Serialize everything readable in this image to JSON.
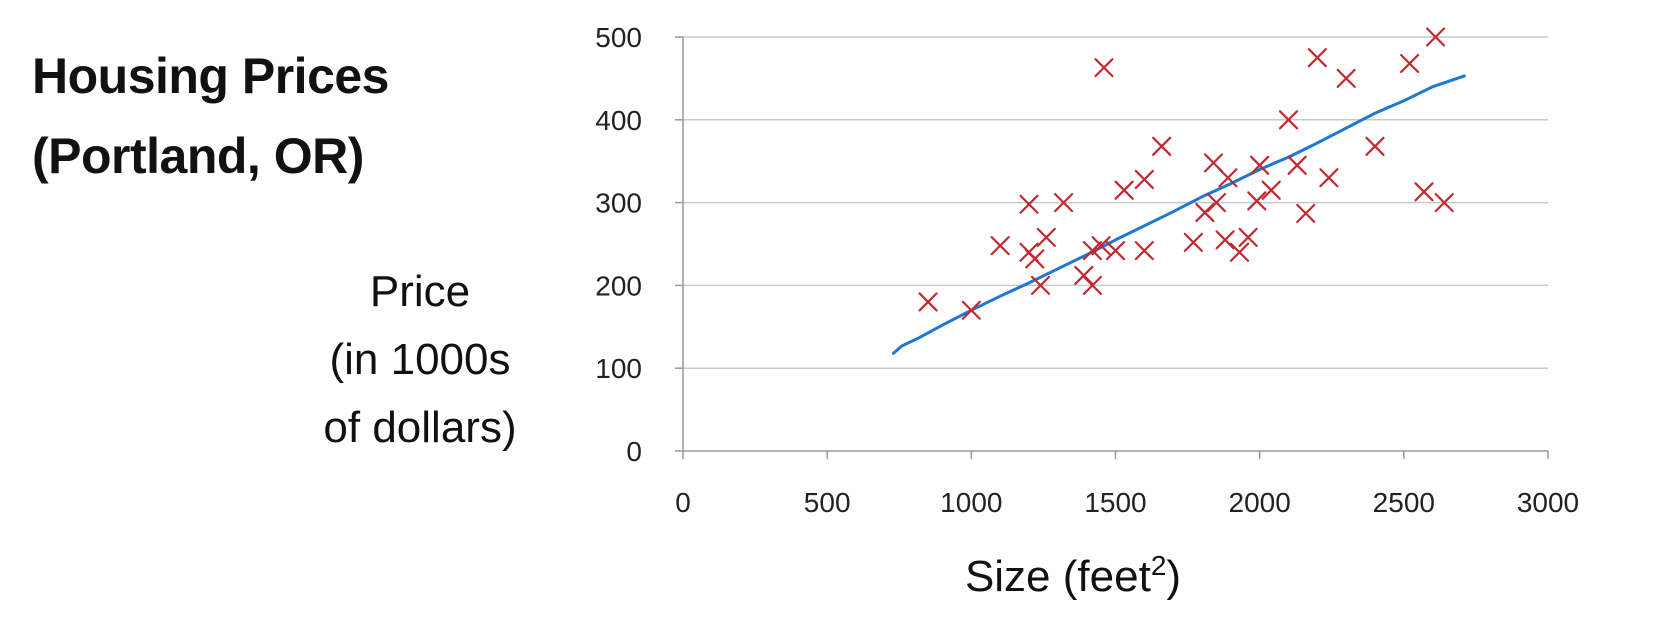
{
  "chart_data": {
    "type": "scatter",
    "title": [
      "Housing Prices",
      "(Portland, OR)"
    ],
    "ylabel": [
      "Price",
      "(in 1000s",
      "of dollars)"
    ],
    "xlabel": "Size (feet",
    "xlabel_superscript": "2",
    "xlabel_suffix": ")",
    "xlim": [
      0,
      3000
    ],
    "ylim": [
      0,
      500
    ],
    "xticks": [
      0,
      500,
      1000,
      1500,
      2000,
      2500,
      3000
    ],
    "yticks": [
      0,
      100,
      200,
      300,
      400,
      500
    ],
    "grid": "horizontal",
    "marker_color": "#c0292f",
    "fit_color": "#1e78d2",
    "series": [
      {
        "marker": "x",
        "points": [
          {
            "x": 850,
            "y": 180
          },
          {
            "x": 1000,
            "y": 170
          },
          {
            "x": 1100,
            "y": 248
          },
          {
            "x": 1200,
            "y": 298
          },
          {
            "x": 1200,
            "y": 240
          },
          {
            "x": 1220,
            "y": 232
          },
          {
            "x": 1240,
            "y": 200
          },
          {
            "x": 1260,
            "y": 258
          },
          {
            "x": 1320,
            "y": 300
          },
          {
            "x": 1390,
            "y": 212
          },
          {
            "x": 1420,
            "y": 200
          },
          {
            "x": 1420,
            "y": 242
          },
          {
            "x": 1450,
            "y": 248
          },
          {
            "x": 1460,
            "y": 463
          },
          {
            "x": 1500,
            "y": 242
          },
          {
            "x": 1530,
            "y": 315
          },
          {
            "x": 1600,
            "y": 328
          },
          {
            "x": 1600,
            "y": 242
          },
          {
            "x": 1660,
            "y": 368
          },
          {
            "x": 1770,
            "y": 252
          },
          {
            "x": 1810,
            "y": 288
          },
          {
            "x": 1840,
            "y": 348
          },
          {
            "x": 1850,
            "y": 300
          },
          {
            "x": 1880,
            "y": 255
          },
          {
            "x": 1890,
            "y": 330
          },
          {
            "x": 1930,
            "y": 240
          },
          {
            "x": 1960,
            "y": 258
          },
          {
            "x": 1990,
            "y": 302
          },
          {
            "x": 2000,
            "y": 345
          },
          {
            "x": 2040,
            "y": 315
          },
          {
            "x": 2100,
            "y": 400
          },
          {
            "x": 2130,
            "y": 345
          },
          {
            "x": 2160,
            "y": 287
          },
          {
            "x": 2200,
            "y": 475
          },
          {
            "x": 2240,
            "y": 330
          },
          {
            "x": 2300,
            "y": 450
          },
          {
            "x": 2400,
            "y": 368
          },
          {
            "x": 2520,
            "y": 468
          },
          {
            "x": 2570,
            "y": 313
          },
          {
            "x": 2610,
            "y": 500
          },
          {
            "x": 2640,
            "y": 300
          }
        ]
      }
    ],
    "fit_line": [
      {
        "x": 730,
        "y": 118
      },
      {
        "x": 760,
        "y": 127
      },
      {
        "x": 820,
        "y": 137
      },
      {
        "x": 900,
        "y": 152
      },
      {
        "x": 1000,
        "y": 170
      },
      {
        "x": 1100,
        "y": 187
      },
      {
        "x": 1200,
        "y": 203
      },
      {
        "x": 1300,
        "y": 220
      },
      {
        "x": 1400,
        "y": 237
      },
      {
        "x": 1500,
        "y": 255
      },
      {
        "x": 1600,
        "y": 272
      },
      {
        "x": 1700,
        "y": 289
      },
      {
        "x": 1800,
        "y": 307
      },
      {
        "x": 1900,
        "y": 323
      },
      {
        "x": 2000,
        "y": 340
      },
      {
        "x": 2100,
        "y": 355
      },
      {
        "x": 2200,
        "y": 372
      },
      {
        "x": 2300,
        "y": 390
      },
      {
        "x": 2400,
        "y": 408
      },
      {
        "x": 2500,
        "y": 423
      },
      {
        "x": 2600,
        "y": 440
      },
      {
        "x": 2710,
        "y": 453
      }
    ]
  }
}
